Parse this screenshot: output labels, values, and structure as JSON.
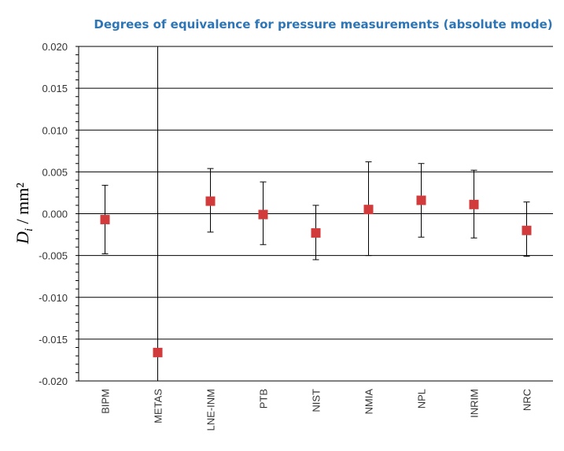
{
  "chart_data": {
    "type": "scatter",
    "title": "Degrees of equivalence for pressure measurements (absolute mode)",
    "ylabel": "D_i / mm²",
    "ylabel_parts": {
      "symbol": "D",
      "subscript": "i",
      "unit": " / mm²"
    },
    "xlabel": "",
    "ylim": [
      -0.02,
      0.02
    ],
    "yticks": [
      0.02,
      0.015,
      0.01,
      0.005,
      0.0,
      -0.005,
      -0.01,
      -0.015,
      -0.02
    ],
    "ytick_labels": [
      "0.020",
      "0.015",
      "0.010",
      "0.005",
      "0.000",
      "-0.005",
      "-0.010",
      "-0.015",
      "-0.020"
    ],
    "categories": [
      "BIPM",
      "METAS",
      "LNE-INM",
      "PTB",
      "NIST",
      "NMIA",
      "NPL",
      "INRIM",
      "NRC"
    ],
    "values": [
      -0.0007,
      -0.0166,
      0.0015,
      -0.0001,
      -0.0023,
      0.0005,
      0.0016,
      0.0011,
      -0.002
    ],
    "error_low": [
      -0.0048,
      -0.02,
      -0.0022,
      -0.0037,
      -0.0055,
      -0.005,
      -0.0028,
      -0.0029,
      -0.0051
    ],
    "error_high": [
      0.0034,
      0.02,
      0.0054,
      0.0038,
      0.001,
      0.0062,
      0.006,
      0.0052,
      0.0014
    ],
    "grid": true,
    "legend": "none",
    "colors": {
      "marker": "#d23b3b",
      "title": "#2e75b6",
      "grid": "#000000",
      "errorbar": "#000000"
    }
  }
}
